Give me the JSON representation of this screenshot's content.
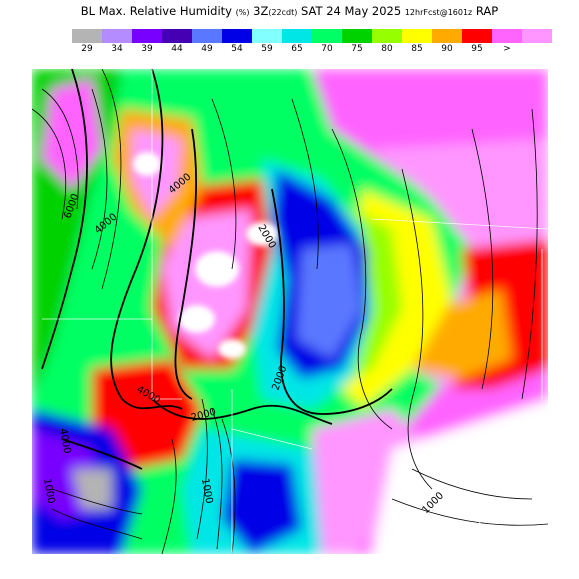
{
  "header": {
    "title_main": "BL Max. Relative Humidity",
    "title_units": "(%)",
    "title_valid": "3Z",
    "title_tz": "(22cdt)",
    "title_date": "SAT 24 May 2025",
    "title_run": "12hrFcst@1601z",
    "title_model": "RAP"
  },
  "legend": {
    "colors": [
      "#b4b4b4",
      "#b48cff",
      "#7800ff",
      "#4600b4",
      "#5a78ff",
      "#0000e6",
      "#82ffff",
      "#00e6e6",
      "#00ff64",
      "#00d200",
      "#96ff00",
      "#ffff00",
      "#ffaa00",
      "#ff0000",
      "#ff64ff",
      "#ff96ff"
    ],
    "labels": [
      "29",
      "34",
      "39",
      "44",
      "49",
      "54",
      "59",
      "65",
      "70",
      "75",
      "80",
      "85",
      "90",
      "95"
    ],
    "overflow": ">"
  },
  "map": {
    "contour_labels": [
      "6000",
      "4000",
      "4000",
      "2000",
      "2000",
      "4000",
      "2000",
      "4000",
      "1000",
      "1000",
      "1000"
    ]
  }
}
